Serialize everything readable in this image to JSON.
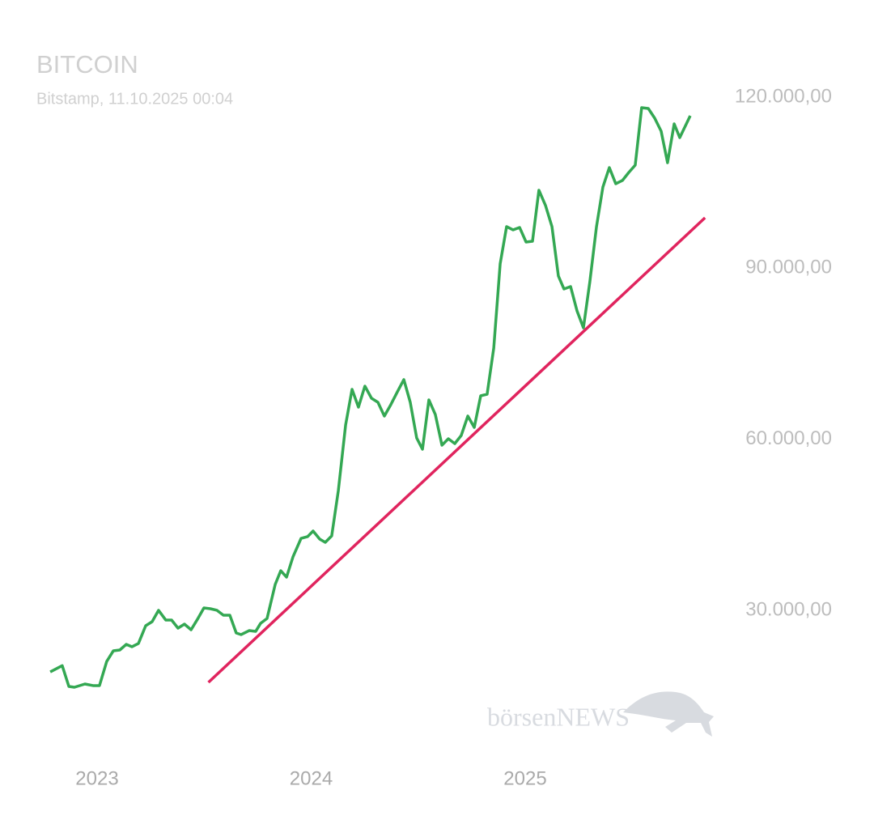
{
  "chart_data": {
    "type": "line",
    "title": "BITCOIN",
    "subtitle": "Bitstamp, 11.10.2025 00:04",
    "watermark": "börsenNEWS",
    "x": [
      2022.781,
      2022.837,
      2022.868,
      2022.894,
      2022.943,
      2022.981,
      2023.011,
      2023.045,
      2023.076,
      2023.106,
      2023.136,
      2023.163,
      2023.193,
      2023.227,
      2023.257,
      2023.287,
      2023.321,
      2023.348,
      2023.378,
      2023.408,
      2023.439,
      2023.469,
      2023.499,
      2023.529,
      2023.56,
      2023.59,
      2023.62,
      2023.65,
      2023.673,
      2023.711,
      2023.741,
      2023.764,
      2023.794,
      2023.832,
      2023.858,
      2023.885,
      2023.915,
      2023.953,
      2023.983,
      2024.009,
      2024.04,
      2024.066,
      2024.096,
      2024.127,
      2024.161,
      2024.191,
      2024.221,
      2024.251,
      2024.282,
      2024.312,
      2024.342,
      2024.372,
      2024.403,
      2024.433,
      2024.463,
      2024.493,
      2024.52,
      2024.55,
      2024.58,
      2024.611,
      2024.641,
      2024.671,
      2024.701,
      2024.732,
      2024.762,
      2024.792,
      2024.822,
      2024.853,
      2024.883,
      2024.913,
      2024.943,
      2024.974,
      2025.004,
      2025.034,
      2025.064,
      2025.095,
      2025.125,
      2025.155,
      2025.181,
      2025.212,
      2025.242,
      2025.272,
      2025.302,
      2025.333,
      2025.363,
      2025.393,
      2025.423,
      2025.454,
      2025.484,
      2025.514,
      2025.544,
      2025.575,
      2025.605,
      2025.635,
      2025.665,
      2025.696,
      2025.722,
      2025.771
    ],
    "series": [
      {
        "color": "#34a853",
        "values": [
          19200,
          20300,
          16650,
          16510,
          17080,
          16800,
          16800,
          21050,
          22900,
          23040,
          24030,
          23610,
          24180,
          27300,
          28010,
          30000,
          28290,
          28290,
          26870,
          27580,
          26590,
          28440,
          30420,
          30280,
          30000,
          29150,
          29150,
          26020,
          25740,
          26450,
          26310,
          27730,
          28580,
          34540,
          36950,
          35820,
          39370,
          42630,
          42920,
          43910,
          42490,
          41920,
          43060,
          51010,
          62510,
          68750,
          65630,
          69320,
          67190,
          66480,
          64070,
          66060,
          68330,
          70460,
          66480,
          60230,
          58250,
          66910,
          64350,
          58960,
          60090,
          59240,
          60660,
          64070,
          62080,
          67620,
          67900,
          75990,
          90760,
          97290,
          96720,
          97140,
          94590,
          94730,
          103680,
          100980,
          97290,
          88630,
          86360,
          86780,
          82520,
          79540,
          87630,
          97290,
          104240,
          107650,
          104810,
          105380,
          106800,
          108080,
          118150,
          118010,
          116310,
          114040,
          108500,
          115320,
          112900,
          116740
        ]
      }
    ],
    "trend_line": {
      "x": [
        2023.52,
        2025.84
      ],
      "values": [
        17360,
        98850
      ],
      "color": "#e0245e"
    },
    "xlim": [
      2022.7,
      2025.9
    ],
    "xticks": [
      2023,
      2024,
      2025
    ],
    "ylim": [
      0,
      130000
    ],
    "yticks": [
      {
        "value": 30000,
        "label": "30.000,00"
      },
      {
        "value": 60000,
        "label": "60.000,00"
      },
      {
        "value": 90000,
        "label": "90.000,00"
      },
      {
        "value": 120000,
        "label": "120.000,00"
      }
    ],
    "grid": false
  }
}
